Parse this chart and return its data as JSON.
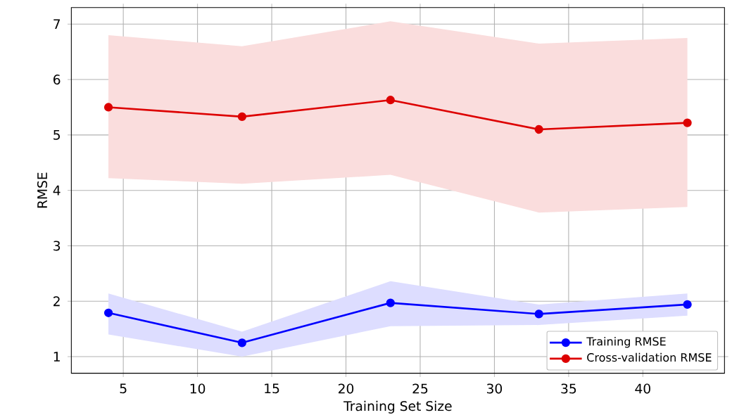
{
  "chart_data": {
    "type": "line",
    "xlabel": "Training Set Size",
    "ylabel": "RMSE",
    "x": [
      4,
      13,
      23,
      33,
      43
    ],
    "series": [
      {
        "name": "Training RMSE",
        "color": "#0000ff",
        "values": [
          1.79,
          1.25,
          1.97,
          1.77,
          1.94
        ],
        "lower": [
          1.4,
          1.0,
          1.55,
          1.57,
          1.74
        ],
        "upper": [
          2.14,
          1.45,
          2.36,
          1.94,
          2.14
        ]
      },
      {
        "name": "Cross-validation RMSE",
        "color": "#dd0000",
        "values": [
          5.5,
          5.33,
          5.63,
          5.1,
          5.22
        ],
        "lower": [
          4.22,
          4.12,
          4.28,
          3.6,
          3.7
        ],
        "upper": [
          6.8,
          6.6,
          7.05,
          6.65,
          6.75
        ]
      }
    ],
    "xlim": [
      1.5,
      45.5
    ],
    "ylim": [
      0.7,
      7.3
    ],
    "xticks": [
      5,
      10,
      15,
      20,
      25,
      30,
      35,
      40
    ],
    "yticks": [
      1,
      2,
      3,
      4,
      5,
      6,
      7
    ],
    "grid": true,
    "legend": "bottom right",
    "marker": "circle",
    "line_style": "solid"
  }
}
